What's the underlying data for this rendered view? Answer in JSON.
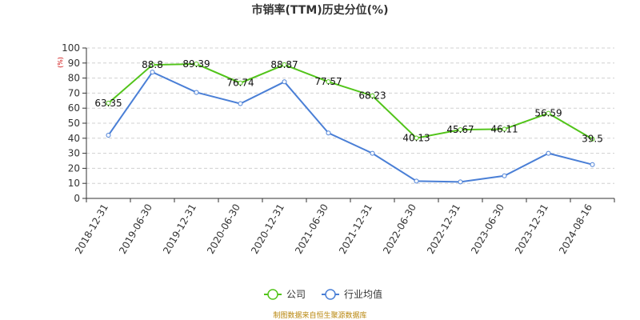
{
  "chart_data": {
    "type": "line",
    "title": "市销率(TTM)历史分位(%)",
    "unit_label": "(%)",
    "categories": [
      "2018-12-31",
      "2019-06-30",
      "2019-12-31",
      "2020-06-30",
      "2020-12-31",
      "2021-06-30",
      "2021-12-31",
      "2022-06-30",
      "2022-12-31",
      "2023-06-30",
      "2023-12-31",
      "2024-08-16"
    ],
    "ylim": [
      0,
      100
    ],
    "yticks": [
      0,
      10,
      20,
      30,
      40,
      50,
      60,
      70,
      80,
      90,
      100
    ],
    "grid": true,
    "legend_position": "bottom-center",
    "series": [
      {
        "name": "公司",
        "color": "#52c41a",
        "show_labels": true,
        "values": [
          63.35,
          88.8,
          89.39,
          76.74,
          88.87,
          77.57,
          68.23,
          40.13,
          45.67,
          46.11,
          56.59,
          39.5
        ]
      },
      {
        "name": "行业均值",
        "color": "#4a7fd6",
        "show_labels": false,
        "values": [
          42,
          84,
          70.5,
          63,
          77.5,
          43.5,
          30,
          11.5,
          11,
          15,
          30,
          22.5
        ]
      }
    ]
  },
  "source_note": "制图数据来自恒生聚源数据库"
}
